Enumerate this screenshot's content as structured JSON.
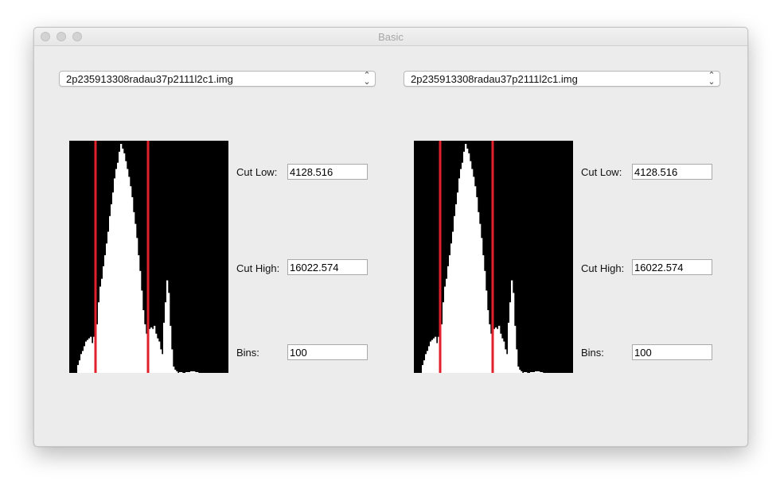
{
  "window": {
    "title": "Basic"
  },
  "panels": [
    {
      "file_select": "2p235913308radau37p2111l2c1.img",
      "cut_low_label": "Cut Low:",
      "cut_low_value": "4128.516",
      "cut_high_label": "Cut High:",
      "cut_high_value": "16022.574",
      "bins_label": "Bins:",
      "bins_value": "100"
    },
    {
      "file_select": "2p235913308radau37p2111l2c1.img",
      "cut_low_label": "Cut Low:",
      "cut_low_value": "4128.516",
      "cut_high_label": "Cut High:",
      "cut_high_value": "16022.574",
      "bins_label": "Bins:",
      "bins_value": "100"
    }
  ],
  "histogram": {
    "bins": 100,
    "counts": [
      0,
      0,
      0,
      0,
      0,
      10,
      16,
      24,
      28,
      34,
      40,
      42,
      44,
      46,
      38,
      46,
      50,
      62,
      90,
      110,
      120,
      136,
      150,
      165,
      180,
      200,
      215,
      230,
      248,
      260,
      268,
      282,
      292,
      286,
      280,
      270,
      260,
      250,
      238,
      224,
      205,
      190,
      172,
      150,
      130,
      105,
      80,
      62,
      50,
      54,
      56,
      58,
      56,
      60,
      50,
      44,
      40,
      30,
      24,
      64,
      90,
      118,
      102,
      60,
      30,
      8,
      4,
      2,
      0,
      1,
      1,
      0,
      0,
      1,
      1,
      1,
      2,
      2,
      2,
      1,
      1,
      0,
      0,
      0,
      0,
      0,
      0,
      0,
      0,
      0,
      0,
      0,
      0,
      0,
      0,
      0,
      0,
      0,
      0,
      0
    ],
    "cut_low_bin": 16,
    "cut_high_bin": 49,
    "colors": {
      "background": "#000000",
      "bars": "#ffffff",
      "cut_lines": "#e0202a"
    }
  }
}
